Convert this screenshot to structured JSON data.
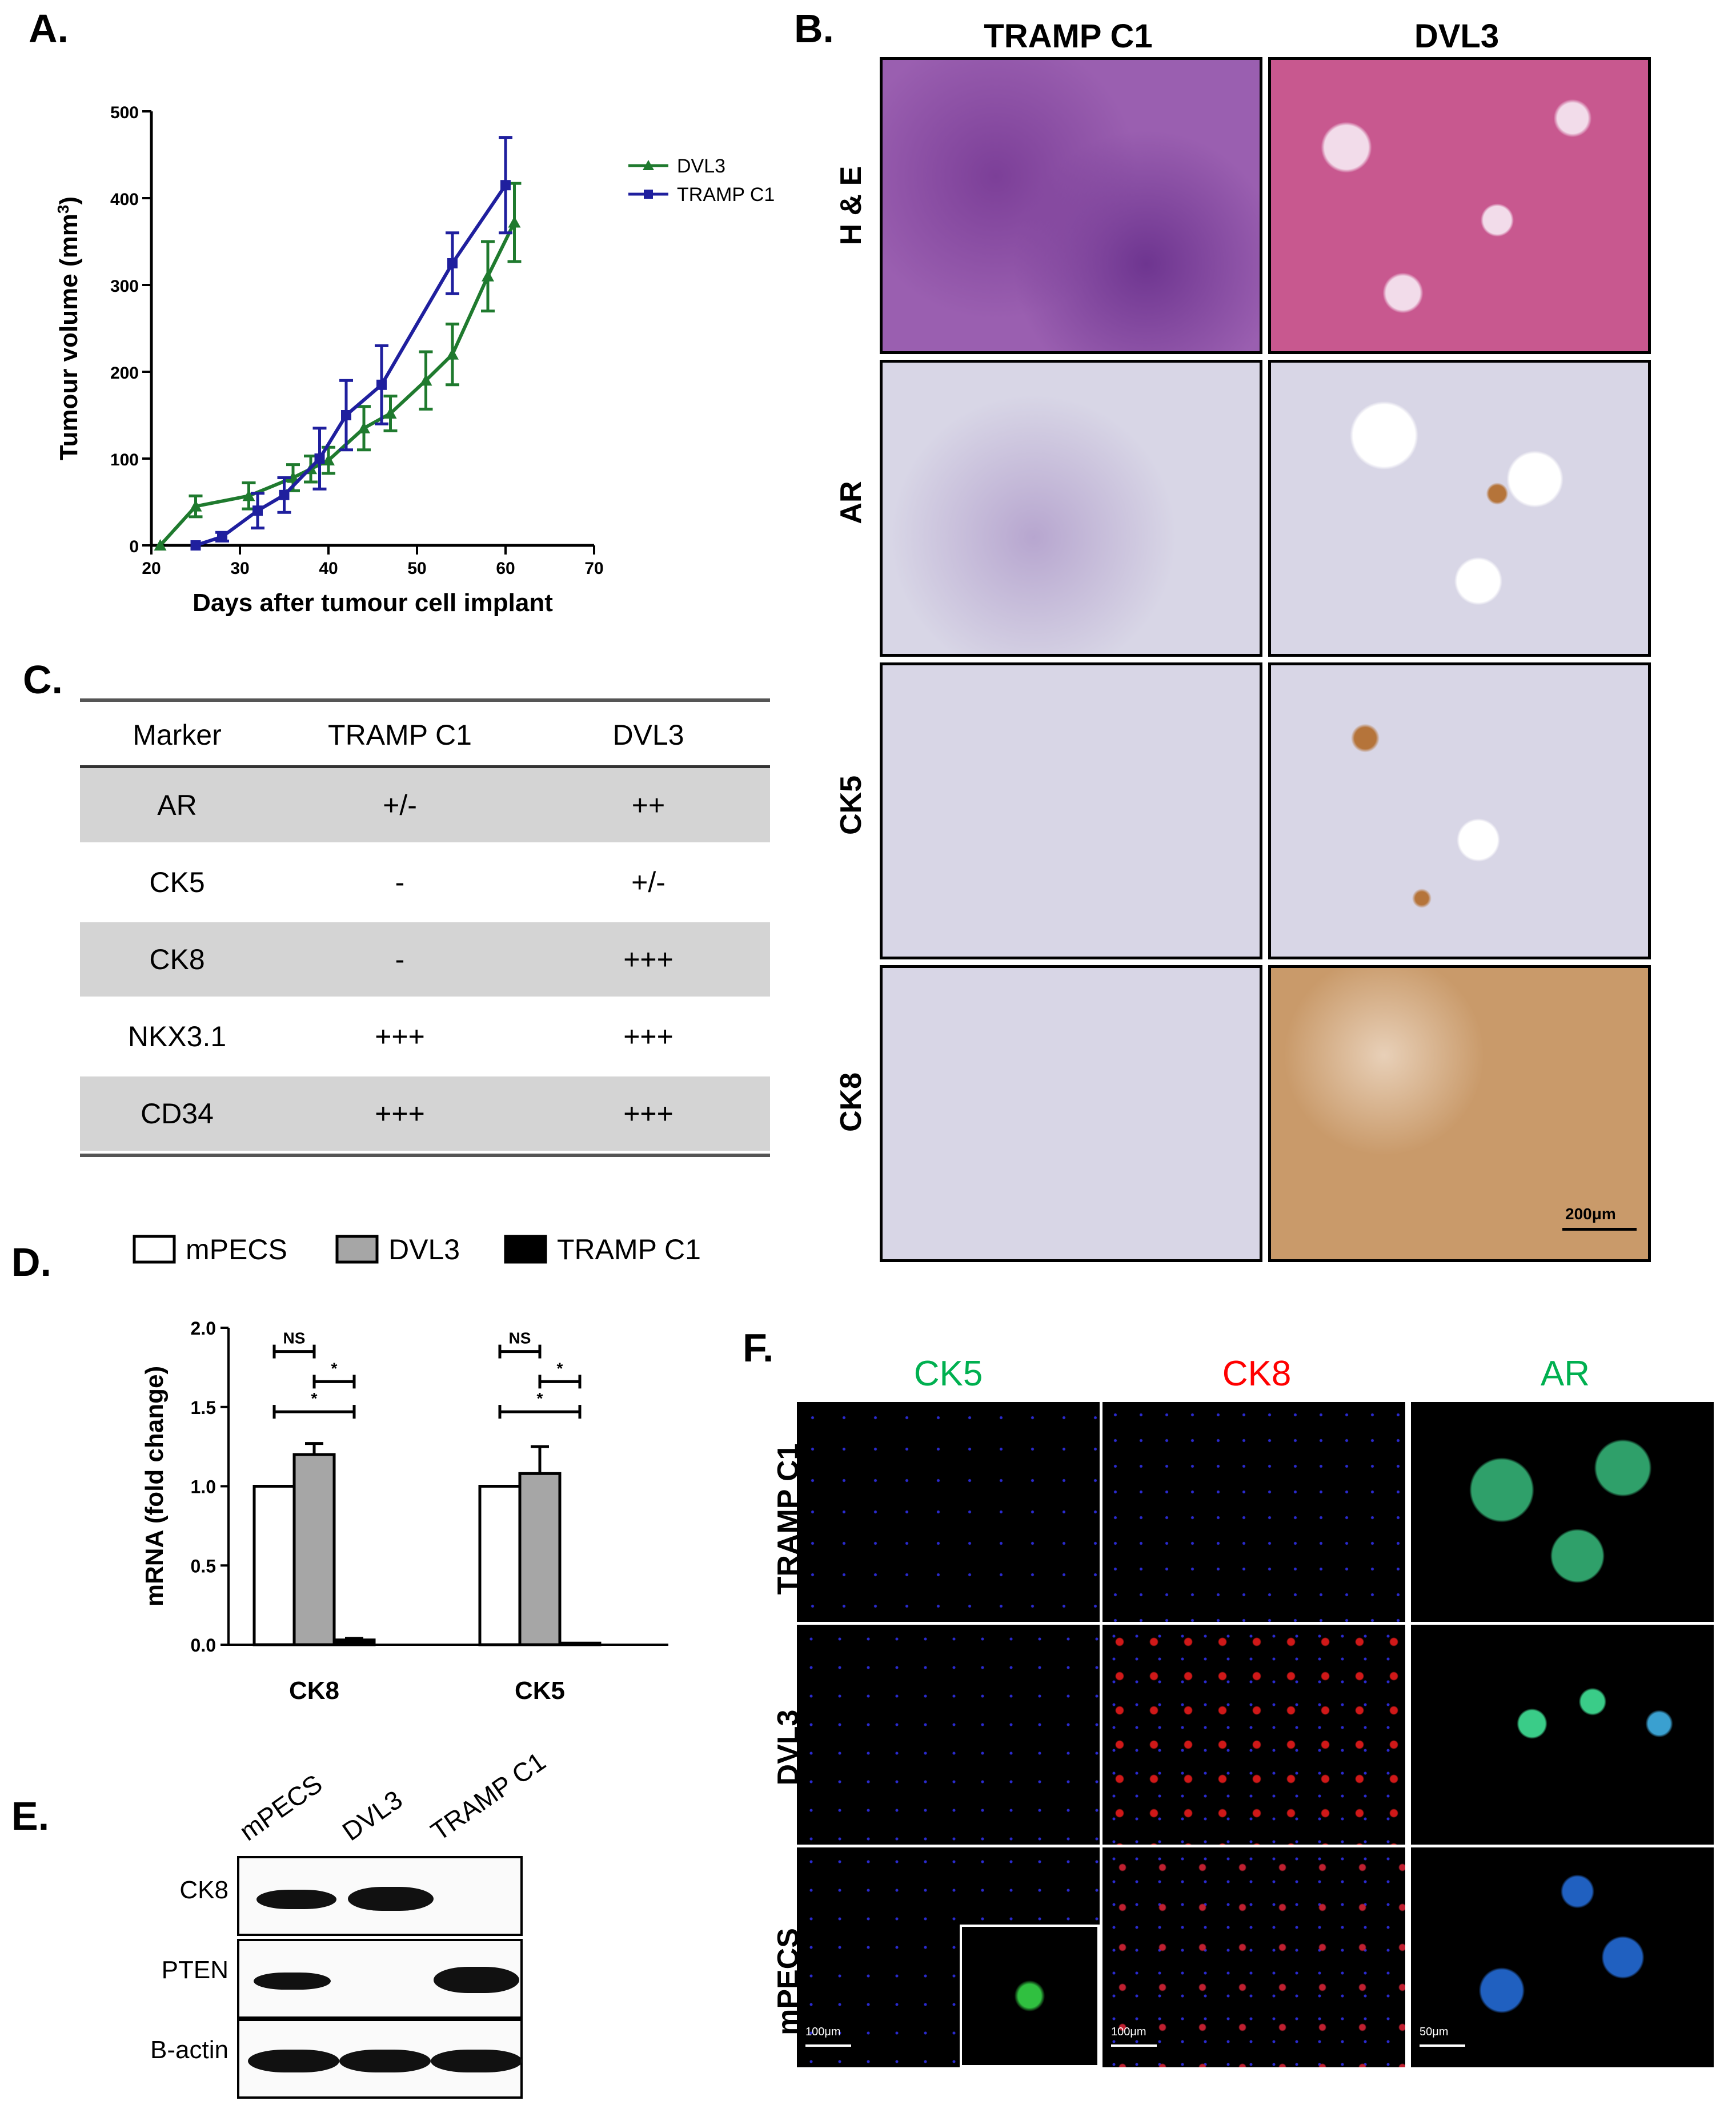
{
  "panels": {
    "A": "A.",
    "B": "B.",
    "C": "C.",
    "D": "D.",
    "E": "E.",
    "F": "F."
  },
  "chart_data": [
    {
      "type": "line",
      "xlabel": "Days after tumour cell implant",
      "ylabel": "Tumour volume (mm",
      "ylabel_sup": "3",
      "ylabel_close": ")",
      "xlim": [
        20,
        70
      ],
      "ylim": [
        0,
        500
      ],
      "xticks": [
        20,
        30,
        40,
        50,
        60,
        70
      ],
      "yticks": [
        0,
        100,
        200,
        300,
        400,
        500
      ],
      "legend_position": "top-right",
      "series": [
        {
          "name": "DVL3",
          "color": "#1f7a2e",
          "marker": "triangle",
          "x": [
            21,
            25,
            31,
            36,
            38,
            40,
            44,
            47,
            51,
            54,
            58,
            61
          ],
          "y": [
            0,
            45,
            57,
            78,
            88,
            98,
            135,
            152,
            190,
            220,
            310,
            372
          ],
          "err": [
            0,
            12,
            15,
            15,
            15,
            15,
            25,
            20,
            33,
            35,
            40,
            45
          ]
        },
        {
          "name": "TRAMP C1",
          "color": "#1f1f9e",
          "marker": "square",
          "x": [
            25,
            28,
            32,
            35,
            39,
            42,
            46,
            54,
            60
          ],
          "y": [
            0,
            10,
            40,
            58,
            100,
            150,
            185,
            325,
            415
          ],
          "err": [
            0,
            5,
            20,
            20,
            35,
            40,
            45,
            35,
            55
          ]
        }
      ]
    },
    {
      "type": "table",
      "headers": [
        "Marker",
        "TRAMP C1",
        "DVL3"
      ],
      "rows": [
        [
          "AR",
          "+/-",
          "++"
        ],
        [
          "CK5",
          "-",
          "+/-"
        ],
        [
          "CK8",
          "-",
          "+++"
        ],
        [
          "NKX3.1",
          "+++",
          "+++"
        ],
        [
          "CD34",
          "+++",
          "+++"
        ]
      ]
    },
    {
      "type": "bar",
      "ylabel": "mRNA (fold change)",
      "ylim": [
        0,
        2.0
      ],
      "yticks": [
        "0.0",
        "0.5",
        "1.0",
        "1.5",
        "2.0"
      ],
      "categories": [
        "CK8",
        "CK5"
      ],
      "series": [
        {
          "name": "mPECS",
          "color": "#ffffff",
          "values": [
            1.0,
            1.0
          ],
          "err": [
            0,
            0
          ]
        },
        {
          "name": "DVL3",
          "color": "#a6a6a6",
          "values": [
            1.2,
            1.08
          ],
          "err": [
            0.07,
            0.17
          ]
        },
        {
          "name": "TRAMP C1",
          "color": "#000000",
          "values": [
            0.03,
            0.01
          ],
          "err": [
            0.01,
            0.0
          ]
        }
      ],
      "annotations": [
        "NS",
        "*",
        "*",
        "NS",
        "*",
        "*"
      ]
    }
  ],
  "histology": {
    "columns": [
      "TRAMP C1",
      "DVL3"
    ],
    "rows": [
      "H & E",
      "AR",
      "CK5",
      "CK8"
    ],
    "scale_bar": "200μm",
    "tint": {
      "he_tramp": "#9a5fb0",
      "he_dvl3": "#c8588f",
      "ihc_bg": "#d8d6e6",
      "ihc_brown": "#b5743a",
      "ck8_dvl3": "#c99a6a"
    }
  },
  "blot": {
    "lanes": [
      "mPECS",
      "DVL3",
      "TRAMP C1"
    ],
    "rows": [
      "CK8",
      "PTEN",
      "B-actin"
    ]
  },
  "fluorescence": {
    "columns": [
      {
        "label": "CK5",
        "color": "#00b050"
      },
      {
        "label": "CK8",
        "color": "#ff0000"
      },
      {
        "label": "AR",
        "color": "#00b050"
      }
    ],
    "rows": [
      "TRAMP C1",
      "DVL3",
      "mPECS"
    ],
    "scale_bars": [
      "100μm",
      "100μm",
      "50μm"
    ]
  }
}
